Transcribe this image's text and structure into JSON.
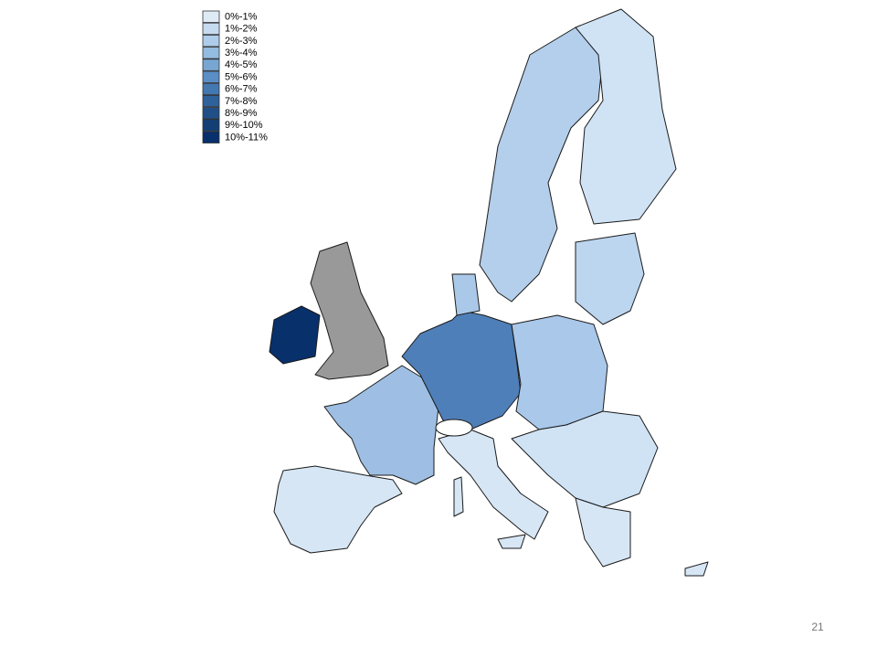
{
  "legend": {
    "items": [
      {
        "label": "0%-1%",
        "color": "#deebf7"
      },
      {
        "label": "1%-2%",
        "color": "#c6dbef"
      },
      {
        "label": "2%-3%",
        "color": "#aecdea"
      },
      {
        "label": "3%-4%",
        "color": "#94bbe0"
      },
      {
        "label": "4%-5%",
        "color": "#78a6d3"
      },
      {
        "label": "5%-6%",
        "color": "#5a8ec4"
      },
      {
        "label": "6%-7%",
        "color": "#4478b0"
      },
      {
        "label": "7%-8%",
        "color": "#2f629a"
      },
      {
        "label": "8%-9%",
        "color": "#1f4f86"
      },
      {
        "label": "9%-10%",
        "color": "#143f74"
      },
      {
        "label": "10%-11%",
        "color": "#08306b"
      }
    ]
  },
  "page_number": "21"
}
